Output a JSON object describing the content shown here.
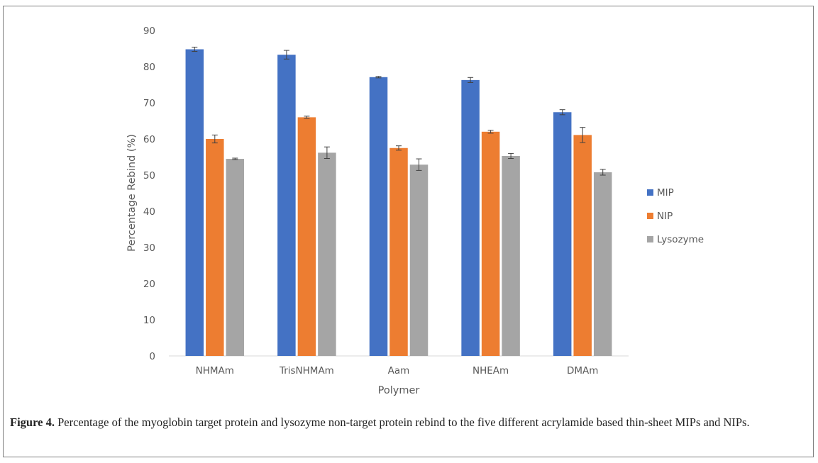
{
  "chart_data": {
    "type": "bar",
    "title": "",
    "xlabel": "Polymer",
    "ylabel": "Percentage Rebind (%)",
    "ylim": [
      0,
      90
    ],
    "yticks": [
      0,
      10,
      20,
      30,
      40,
      50,
      60,
      70,
      80,
      90
    ],
    "categories": [
      "NHMAm",
      "TrisNHMAm",
      "Aam",
      "NHEAm",
      "DMAm"
    ],
    "legend_position": "right",
    "grid": false,
    "error_bars": true,
    "series": [
      {
        "name": "MIP",
        "color": "#4472C4",
        "values": [
          84.8,
          83.3,
          77.1,
          76.3,
          67.4
        ],
        "errors": [
          0.6,
          1.2,
          0.2,
          0.7,
          0.7
        ]
      },
      {
        "name": "NIP",
        "color": "#ED7D31",
        "values": [
          60.0,
          66.0,
          57.5,
          62.0,
          61.1
        ],
        "errors": [
          1.1,
          0.3,
          0.6,
          0.4,
          2.1
        ]
      },
      {
        "name": "Lysozyme",
        "color": "#A5A5A5",
        "values": [
          54.5,
          56.2,
          52.9,
          55.3,
          50.8
        ],
        "errors": [
          0.2,
          1.6,
          1.6,
          0.7,
          0.8
        ]
      }
    ]
  },
  "caption": {
    "label": "Figure 4.",
    "text": "Percentage of the myoglobin target protein and lysozyme non-target protein rebind to the five different acrylamide based thin-sheet MIPs and NIPs."
  }
}
